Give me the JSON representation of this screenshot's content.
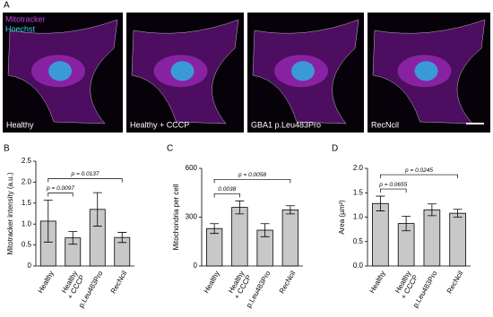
{
  "panel_labels": [
    "A",
    "B",
    "C",
    "D"
  ],
  "stain_legend": [
    {
      "name": "Mitotracker",
      "color": "#c040e0"
    },
    {
      "name": "Hoechst",
      "color": "#40d0e0"
    }
  ],
  "images": [
    {
      "label": "Healthy"
    },
    {
      "label": "Healthy + CCCP"
    },
    {
      "label": "GBA1 p.Leu483Pro"
    },
    {
      "label": "RecNcil"
    }
  ],
  "chart_data": [
    {
      "type": "bar",
      "ylabel": "Mitotracker intensity (a.u.)",
      "categories": [
        "Healthy",
        "Healthy\n+ CCCP",
        "p.Leu483Pro",
        "RecNcil"
      ],
      "values": [
        1.07,
        0.67,
        1.35,
        0.68
      ],
      "errors": [
        0.5,
        0.15,
        0.4,
        0.12
      ],
      "color": "#c8c8c8",
      "ylim": [
        0,
        2.5
      ],
      "yticks": [
        0,
        0.5,
        {
          "value": 1,
          "label": "1.0"
        },
        1.5,
        {
          "value": 2,
          "label": "2.0"
        },
        2.5
      ],
      "comparisons": [
        {
          "between": [
            0,
            1
          ],
          "text": "p = 0.0097"
        },
        {
          "between": [
            0,
            3
          ],
          "text": "p = 0.0137"
        }
      ]
    },
    {
      "type": "bar",
      "ylabel": "Mitochondria per cell",
      "categories": [
        "Healthy",
        "Healthy\n+ CCCP",
        "p.Leu483Pro",
        "RecNcil"
      ],
      "values": [
        230,
        360,
        220,
        345
      ],
      "errors": [
        30,
        40,
        40,
        25
      ],
      "color": "#c8c8c8",
      "ylim": [
        0,
        600
      ],
      "yticks": [
        0,
        300,
        600
      ],
      "comparisons": [
        {
          "between": [
            0,
            1
          ],
          "text": "0.0038"
        },
        {
          "between": [
            0,
            3
          ],
          "text": "p = 0.0058"
        }
      ]
    },
    {
      "type": "bar",
      "ylabel": "Area (µm²)",
      "categories": [
        "Healthy",
        "Healthy\n+ CCCP",
        "p.Leu483Pro",
        "RecNcil"
      ],
      "values": [
        1.28,
        0.87,
        1.15,
        1.08
      ],
      "errors": [
        0.15,
        0.15,
        0.12,
        0.08
      ],
      "color": "#c8c8c8",
      "ylim": [
        0,
        2
      ],
      "yticks": [
        {
          "value": 0,
          "label": "0.0"
        },
        0.5,
        {
          "value": 1,
          "label": "1.0"
        },
        1.5,
        {
          "value": 2,
          "label": "2.0"
        }
      ],
      "comparisons": [
        {
          "between": [
            0,
            1
          ],
          "text": "p = 0.0655"
        },
        {
          "between": [
            0,
            3
          ],
          "text": "p = 0.0245"
        }
      ]
    }
  ]
}
